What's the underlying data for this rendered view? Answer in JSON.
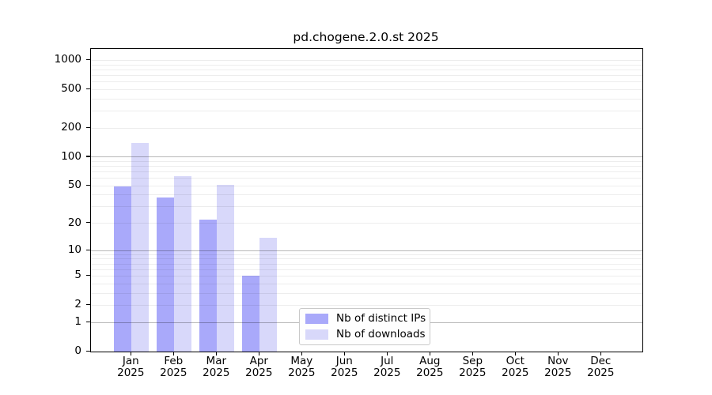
{
  "figure": {
    "background": "#ffffff"
  },
  "chart_data": {
    "type": "bar",
    "title": "pd.chogene.2.0.st 2025",
    "categories": [
      "Jan",
      "Feb",
      "Mar",
      "Apr",
      "May",
      "Jun",
      "Jul",
      "Aug",
      "Sep",
      "Oct",
      "Nov",
      "Dec"
    ],
    "category_year": "2025",
    "series": [
      {
        "name": "Nb of distinct IPs",
        "color": "#a9a9fa",
        "values": [
          49,
          38,
          22,
          5,
          0,
          0,
          0,
          0,
          0,
          0,
          0,
          0
        ]
      },
      {
        "name": "Nb of downloads",
        "color": "#d8d8fa",
        "values": [
          139,
          63,
          51,
          14,
          0,
          0,
          0,
          0,
          0,
          0,
          0,
          0
        ]
      }
    ],
    "xlabel": "",
    "ylabel": "",
    "y_axis": {
      "scale": "log1p",
      "ylim": [
        0,
        1320
      ],
      "tick_values": [
        1000,
        500,
        200,
        100,
        50,
        20,
        10,
        5,
        2,
        1,
        0
      ],
      "minor_gridlines_per_decade": [
        1,
        2,
        3,
        4,
        5,
        6,
        7,
        8,
        9
      ],
      "grid": true
    },
    "legend": {
      "position": "inside-bottom-center",
      "entries": [
        "Nb of distinct IPs",
        "Nb of downloads"
      ]
    },
    "colors": {
      "bar_distinct_ips": "#a9a9fa",
      "bar_downloads": "#d8d8fa",
      "minor_grid": "rgba(0,0,0,0.07)",
      "major_grid": "rgba(0,0,0,0.28)",
      "axis": "#000000",
      "text": "#000000",
      "legend_border": "#c9c9c9",
      "legend_background": "#fefefe"
    }
  }
}
